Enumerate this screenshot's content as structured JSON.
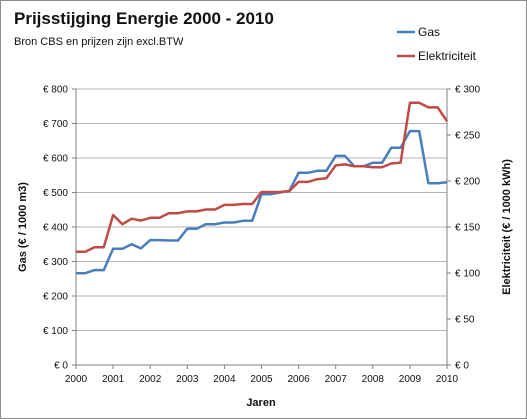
{
  "title": "Prijsstijging Energie 2000 - 2010",
  "subtitle": "Bron CBS en prijzen zijn excl.BTW",
  "chart_data": {
    "type": "line",
    "xlabel": "Jaren",
    "ylabel_left": "Gas  (€ / 1000 m3)",
    "ylabel_right": "Elektriciteit  (€ / 1000 kWh)",
    "xlim": [
      2000,
      2010
    ],
    "x_ticks": [
      "2000",
      "2001",
      "2002",
      "2003",
      "2004",
      "2005",
      "2006",
      "2007",
      "2008",
      "2009",
      "2010"
    ],
    "ylim_left": [
      0,
      800
    ],
    "ylim_right": [
      0,
      300
    ],
    "y_ticks_left": [
      "€ 0",
      "€ 100",
      "€ 200",
      "€ 300",
      "€ 400",
      "€ 500",
      "€ 600",
      "€ 700",
      "€ 800"
    ],
    "y_ticks_right": [
      "€ 0",
      "€ 50",
      "€ 100",
      "€ 150",
      "€ 200",
      "€ 250",
      "€ 300"
    ],
    "grid": "horizontal",
    "legend_position": "top-right",
    "series": [
      {
        "name": "Gas",
        "axis": "left",
        "color": "#4a7ebb",
        "x": [
          2000.0,
          2000.25,
          2000.5,
          2000.75,
          2001.0,
          2001.25,
          2001.5,
          2001.75,
          2002.0,
          2002.25,
          2002.5,
          2002.75,
          2003.0,
          2003.25,
          2003.5,
          2003.75,
          2004.0,
          2004.25,
          2004.5,
          2004.75,
          2005.0,
          2005.25,
          2005.5,
          2005.75,
          2006.0,
          2006.25,
          2006.5,
          2006.75,
          2007.0,
          2007.25,
          2007.5,
          2007.75,
          2008.0,
          2008.25,
          2008.5,
          2008.75,
          2009.0,
          2009.25,
          2009.5,
          2009.75,
          2010.0
        ],
        "values": [
          266,
          266,
          275,
          275,
          337,
          337,
          350,
          338,
          362,
          362,
          361,
          361,
          395,
          395,
          408,
          408,
          413,
          413,
          418,
          418,
          495,
          495,
          500,
          505,
          557,
          557,
          563,
          563,
          606,
          606,
          576,
          576,
          586,
          586,
          630,
          630,
          678,
          678,
          527,
          527,
          530
        ]
      },
      {
        "name": "Elektriciteit",
        "axis": "right",
        "color": "#be4b48",
        "x": [
          2000.0,
          2000.25,
          2000.5,
          2000.75,
          2001.0,
          2001.25,
          2001.5,
          2001.75,
          2002.0,
          2002.25,
          2002.5,
          2002.75,
          2003.0,
          2003.25,
          2003.5,
          2003.75,
          2004.0,
          2004.25,
          2004.5,
          2004.75,
          2005.0,
          2005.25,
          2005.5,
          2005.75,
          2006.0,
          2006.25,
          2006.5,
          2006.75,
          2007.0,
          2007.25,
          2007.5,
          2007.75,
          2008.0,
          2008.25,
          2008.5,
          2008.75,
          2009.0,
          2009.25,
          2009.5,
          2009.75,
          2010.0
        ],
        "values": [
          123,
          123,
          128,
          128,
          163,
          153,
          159,
          157,
          160,
          160,
          165,
          165,
          167,
          167,
          169,
          169,
          174,
          174,
          175,
          175,
          188,
          188,
          188,
          189,
          199,
          199,
          202,
          203,
          217,
          218,
          216,
          216,
          215,
          215,
          219,
          220,
          285,
          285,
          280,
          280,
          265
        ]
      }
    ]
  }
}
